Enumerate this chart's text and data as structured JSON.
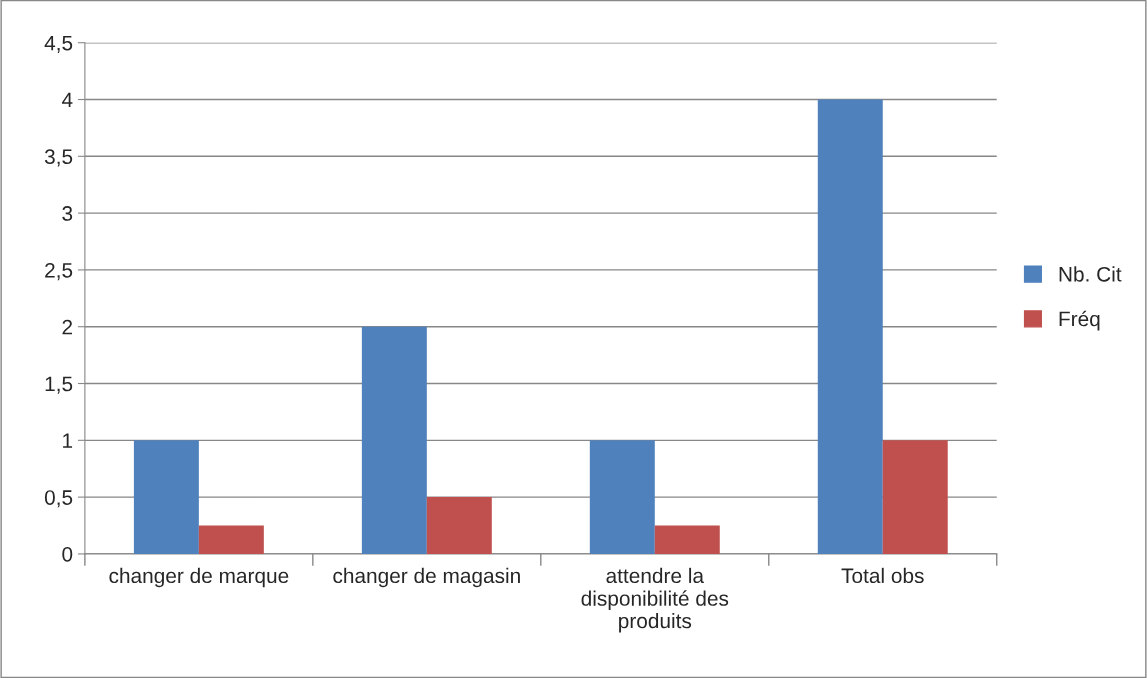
{
  "chart_data": {
    "type": "bar",
    "categories": [
      "changer de marque",
      "changer de magasin",
      "attendre la\ndisponibilité des\nproduits",
      "Total obs"
    ],
    "series": [
      {
        "name": "Nb. Cit",
        "color": "#4f81bd",
        "values": [
          1,
          2,
          1,
          4
        ]
      },
      {
        "name": "Fréq",
        "color": "#c0504d",
        "values": [
          0.25,
          0.5,
          0.25,
          1
        ]
      }
    ],
    "ylim": [
      0,
      4.5
    ],
    "yticks": [
      0,
      {
        "value": 0.5,
        "label": "0,5"
      },
      1,
      {
        "value": 1.5,
        "label": "1,5"
      },
      2,
      {
        "value": 2.5,
        "label": "2,5"
      },
      3,
      {
        "value": 3.5,
        "label": "3,5"
      },
      4,
      {
        "value": 4.5,
        "label": "4,5"
      }
    ],
    "grid": "y",
    "legend": "right"
  }
}
